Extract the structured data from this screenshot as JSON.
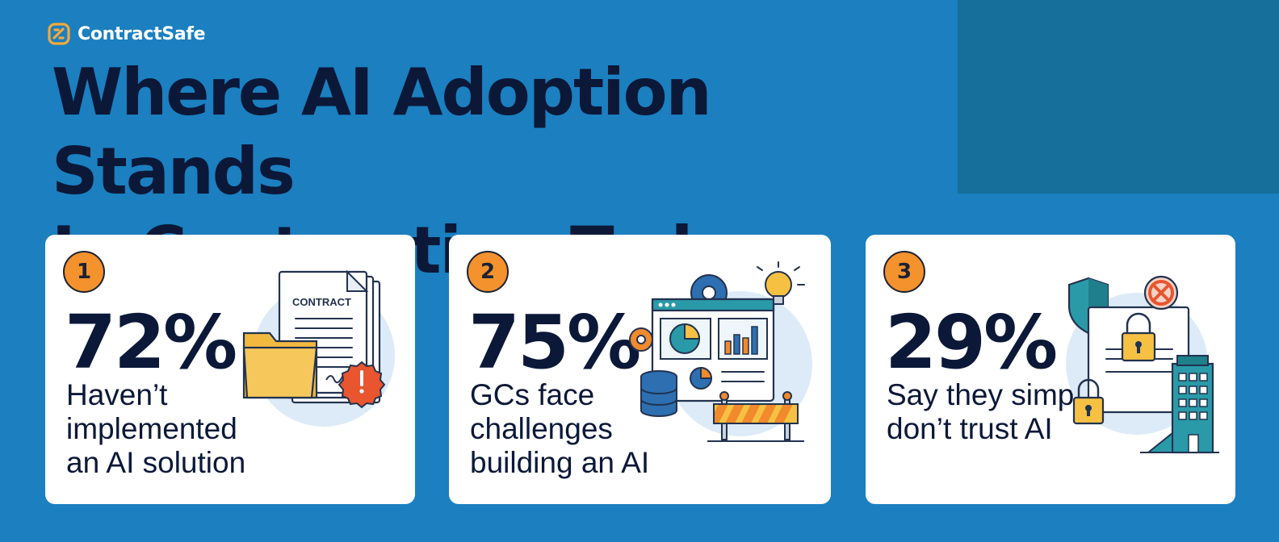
{
  "brand": {
    "name": "ContractSafe",
    "logo_icon": "contractsafe-logo-icon"
  },
  "headline": {
    "line1": "Where AI Adoption Stands",
    "line2": "In Contracting Today"
  },
  "colors": {
    "background": "#1b7fc0",
    "corner_block": "#166e9a",
    "card": "#ffffff",
    "badge": "#f4922d",
    "heading": "#0b1838",
    "accent_teal": "#2a9aa8",
    "accent_orange": "#f08a2c",
    "accent_yellow": "#f6c143",
    "accent_red": "#e8552f"
  },
  "cards": [
    {
      "number": "1",
      "stat": "72%",
      "description": "Haven’t implemented an AI solution",
      "illustration": {
        "icon": "contract-documents-folder-icon",
        "doc_label": "CONTRACT"
      }
    },
    {
      "number": "2",
      "stat": "75%",
      "description": "GCs face challenges building an AI",
      "illustration": {
        "icon": "dashboard-roadblock-icon"
      }
    },
    {
      "number": "3",
      "stat": "29%",
      "description": "Say they simply don’t trust AI",
      "illustration": {
        "icon": "security-lock-building-icon"
      }
    }
  ]
}
